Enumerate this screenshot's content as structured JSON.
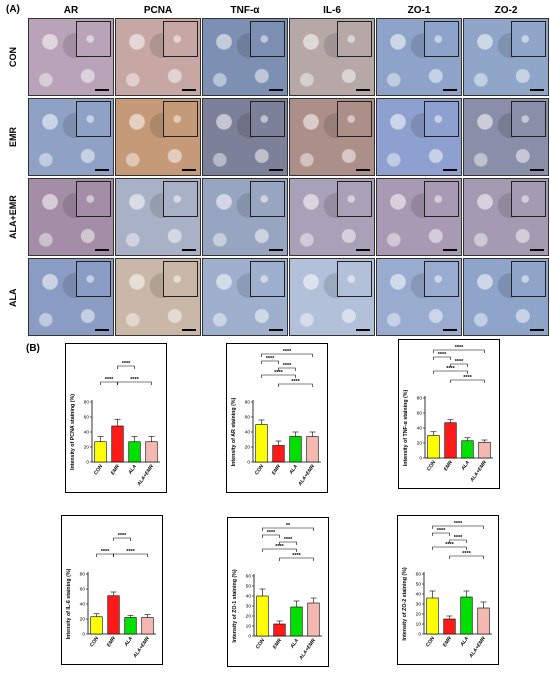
{
  "panel_a_label": "(A)",
  "panel_b_label": "(B)",
  "columns": [
    "AR",
    "PCNA",
    "TNF-α",
    "IL-6",
    "ZO-1",
    "ZO-2"
  ],
  "rows": [
    "CON",
    "EMR",
    "ALA+EMR",
    "ALA"
  ],
  "tile_colors": [
    [
      "#b9a3b9",
      "#c6a7a4",
      "#7d8fb2",
      "#b7a8a8",
      "#8ea3c9",
      "#8fa6c9"
    ],
    [
      "#8fa2c6",
      "#c49a78",
      "#7d8099",
      "#ad8f8a",
      "#8ea0cf",
      "#8a8ea8"
    ],
    [
      "#a48da6",
      "#a9b1c6",
      "#98a5c1",
      "#a8a2b8",
      "#a99ab3",
      "#a49bb3"
    ],
    [
      "#8a9cc4",
      "#c9b7a7",
      "#9fb0cf",
      "#b2c1d9",
      "#99acd0",
      "#8ea4c9"
    ]
  ],
  "chart_data": [
    {
      "type": "bar",
      "ylabel": "Intensity of PCNA staining (%)",
      "categories": [
        "CON",
        "EMR",
        "ALA",
        "ALA+EMR"
      ],
      "values": [
        27,
        48,
        27,
        27
      ],
      "errors": [
        7,
        9,
        7,
        7
      ],
      "ylim": [
        0,
        80
      ],
      "yticks": [
        0,
        20,
        40,
        60,
        80
      ],
      "significance": [
        "****",
        "****",
        "****"
      ],
      "colors": [
        "#ffff00",
        "#ff1a1a",
        "#00e000",
        "#f4b8b0"
      ]
    },
    {
      "type": "bar",
      "ylabel": "Intensity of AR staining (%)",
      "categories": [
        "CON",
        "EMR",
        "ALA",
        "ALA+EMR"
      ],
      "values": [
        50,
        22,
        34,
        34
      ],
      "errors": [
        6,
        6,
        6,
        6
      ],
      "ylim": [
        0,
        80
      ],
      "yticks": [
        0,
        20,
        40,
        60,
        80
      ],
      "significance": [
        "****",
        "****",
        "****",
        "****",
        "****"
      ],
      "colors": [
        "#ffff00",
        "#ff1a1a",
        "#00e000",
        "#f4b8b0"
      ]
    },
    {
      "type": "bar",
      "ylabel": "Intensity of TNF-α staining (%)",
      "categories": [
        "CON",
        "EMR",
        "ALA",
        "ALA+EMR"
      ],
      "values": [
        30,
        47,
        23,
        21
      ],
      "errors": [
        5,
        4,
        4,
        3
      ],
      "ylim": [
        0,
        80
      ],
      "yticks": [
        0,
        20,
        40,
        60,
        80
      ],
      "significance": [
        "****",
        "****",
        "****",
        "****",
        "****"
      ],
      "colors": [
        "#ffff00",
        "#ff1a1a",
        "#00e000",
        "#f4b8b0"
      ]
    },
    {
      "type": "bar",
      "ylabel": "Intensity of IL-6 staining (%)",
      "categories": [
        "CON",
        "EMR",
        "ALA",
        "ALA+EMR"
      ],
      "values": [
        23,
        51,
        22,
        22
      ],
      "errors": [
        4,
        5,
        3,
        4
      ],
      "ylim": [
        0,
        80
      ],
      "yticks": [
        0,
        20,
        40,
        60,
        80
      ],
      "significance": [
        "****",
        "****",
        "****"
      ],
      "colors": [
        "#ffff00",
        "#ff1a1a",
        "#00e000",
        "#f4b8b0"
      ]
    },
    {
      "type": "bar",
      "ylabel": "Intensity of ZO-1 staining (%)",
      "categories": [
        "CON",
        "EMR",
        "ALA",
        "ALA+EMR"
      ],
      "values": [
        40,
        12,
        29,
        33
      ],
      "errors": [
        7,
        3,
        6,
        5
      ],
      "ylim": [
        0,
        60
      ],
      "yticks": [
        0,
        10,
        20,
        30,
        40,
        50,
        60
      ],
      "significance": [
        "**",
        "****",
        "****",
        "****",
        "****"
      ],
      "colors": [
        "#ffff00",
        "#ff1a1a",
        "#00e000",
        "#f4b8b0"
      ]
    },
    {
      "type": "bar",
      "ylabel": "Intensity of ZO-2 staining (%)",
      "categories": [
        "CON",
        "EMR",
        "ALA",
        "ALA+EMR"
      ],
      "values": [
        36,
        15,
        37,
        26
      ],
      "errors": [
        7,
        3,
        6,
        6
      ],
      "ylim": [
        0,
        60
      ],
      "yticks": [
        0,
        10,
        20,
        30,
        40,
        50,
        60
      ],
      "significance": [
        "****",
        "****",
        "****",
        "****",
        "****"
      ],
      "colors": [
        "#ffff00",
        "#ff1a1a",
        "#00e000",
        "#f4b8b0"
      ]
    }
  ]
}
